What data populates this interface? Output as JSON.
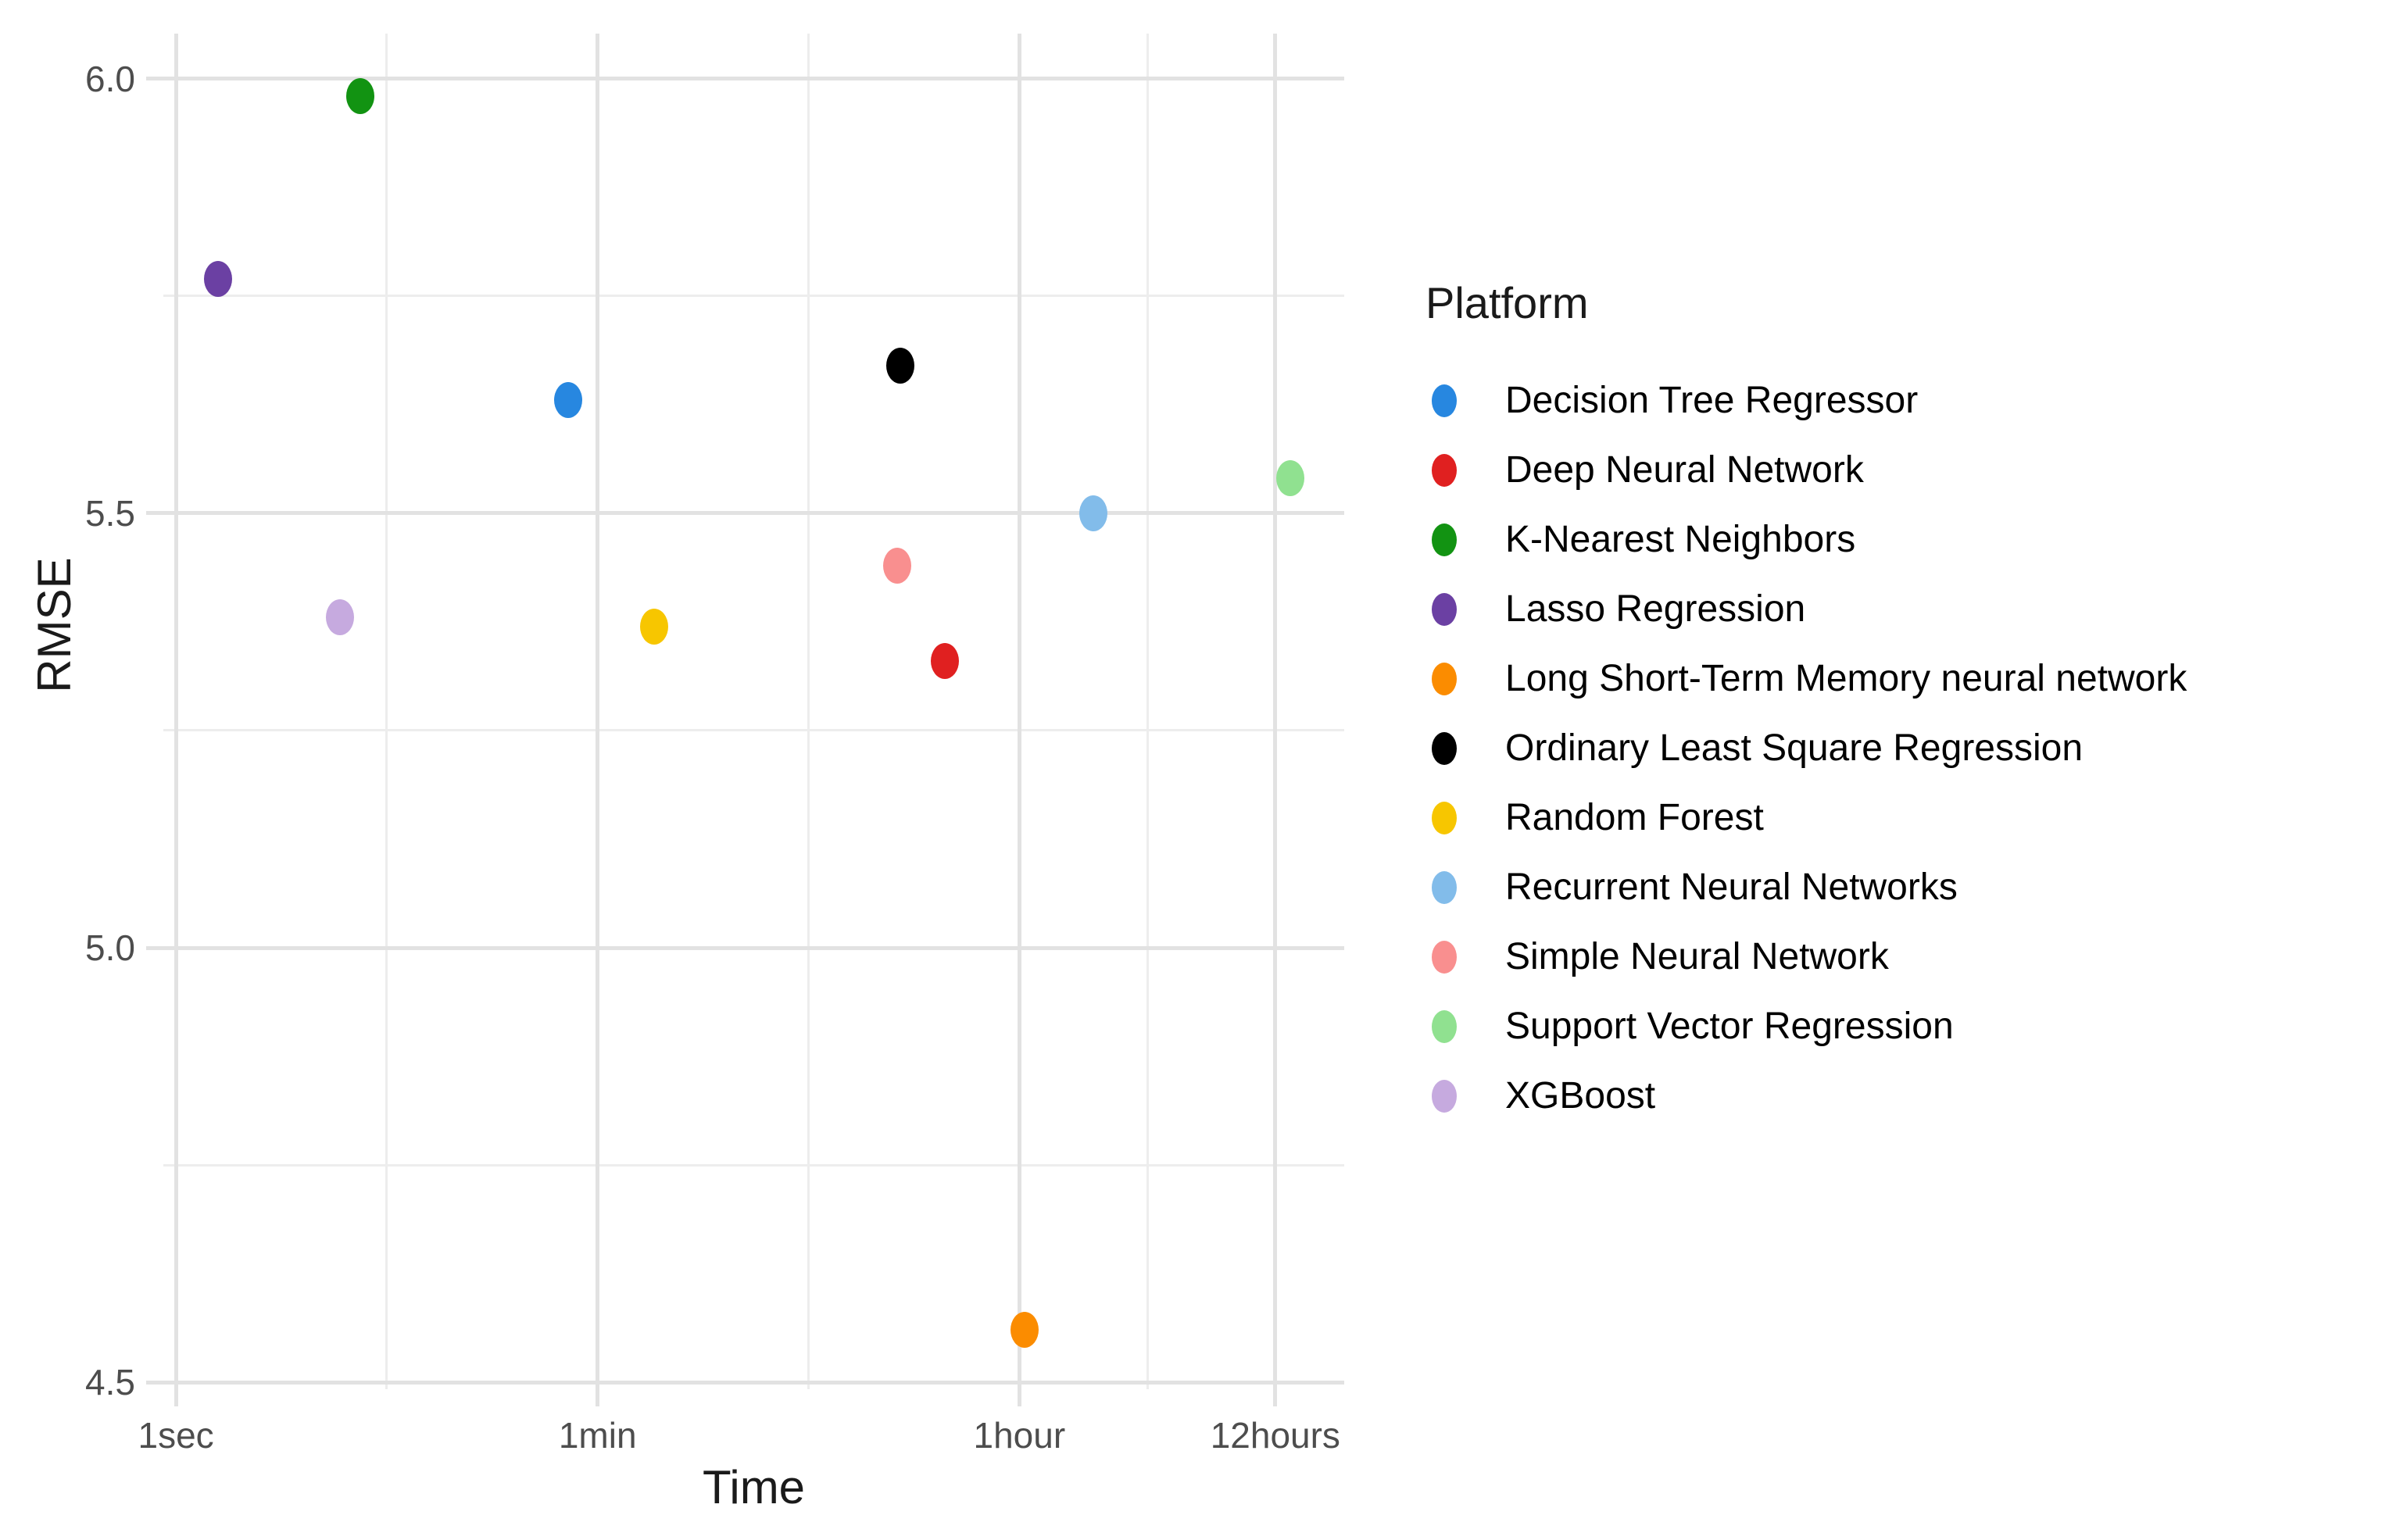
{
  "chart_data": {
    "type": "scatter",
    "title": "",
    "xlabel": "Time",
    "ylabel": "RMSE",
    "legend_title": "Platform",
    "legend_position": "right",
    "grid": "on",
    "x_scale": "log10-seconds",
    "x_ticks": [
      {
        "label": "1sec",
        "seconds": 1
      },
      {
        "label": "1min",
        "seconds": 60
      },
      {
        "label": "1hour",
        "seconds": 3600
      },
      {
        "label": "12hours",
        "seconds": 43200
      }
    ],
    "x_minor_log10": [
      0.889,
      2.667,
      4.096
    ],
    "y_ticks": [
      {
        "label": "6.0",
        "value": 6.0
      },
      {
        "label": "5.5",
        "value": 5.5
      },
      {
        "label": "5.0",
        "value": 5.0
      },
      {
        "label": "4.5",
        "value": 4.5
      }
    ],
    "y_minor": [
      5.75,
      5.25,
      4.75
    ],
    "xlim_log10": [
      -0.053,
      4.926
    ],
    "ylim": [
      4.492,
      6.052
    ],
    "points": [
      {
        "platform": "Decision Tree Regressor",
        "color": "#2787E0",
        "time_label": "~45 sec",
        "time_seconds": 45,
        "rmse": 5.63
      },
      {
        "platform": "Deep Neural Network",
        "color": "#E02020",
        "time_label": "~29 min",
        "time_seconds": 1750,
        "rmse": 5.33
      },
      {
        "platform": "K-Nearest Neighbors",
        "color": "#129312",
        "time_label": "~6 sec",
        "time_seconds": 6,
        "rmse": 5.98
      },
      {
        "platform": "Lasso Regression",
        "color": "#6B40A3",
        "time_label": "~1.5 sec",
        "time_seconds": 1.5,
        "rmse": 5.77
      },
      {
        "platform": "Long Short-Term Memory neural network",
        "color": "#FB8C00",
        "time_label": "~1 hour",
        "time_seconds": 3800,
        "rmse": 4.56
      },
      {
        "platform": "Ordinary Least Square Regression",
        "color": "#000000",
        "time_label": "~19 min",
        "time_seconds": 1130,
        "rmse": 5.67
      },
      {
        "platform": "Random Forest",
        "color": "#F7C600",
        "time_label": "~1.7 min",
        "time_seconds": 104,
        "rmse": 5.37
      },
      {
        "platform": "Recurrent Neural Networks",
        "color": "#82BCEA",
        "time_label": "~2 hours",
        "time_seconds": 7400,
        "rmse": 5.5
      },
      {
        "platform": "Simple Neural Network",
        "color": "#F98F8F",
        "time_label": "~18 min",
        "time_seconds": 1100,
        "rmse": 5.44
      },
      {
        "platform": "Support Vector Regression",
        "color": "#90E190",
        "time_label": "~14 hours",
        "time_seconds": 50000,
        "rmse": 5.54
      },
      {
        "platform": "XGBoost",
        "color": "#C6AADF",
        "time_label": "~5 sec",
        "time_seconds": 4.9,
        "rmse": 5.38
      }
    ],
    "colors": {
      "background": "#FFFFFF",
      "grid_major": "#E2E2E2",
      "grid_minor": "#EDEDED",
      "tick_mark": "#E2E2E2",
      "tick_label": "#4D4D4D",
      "axis_title": "#1A1A1A",
      "legend_text": "#000000"
    }
  }
}
